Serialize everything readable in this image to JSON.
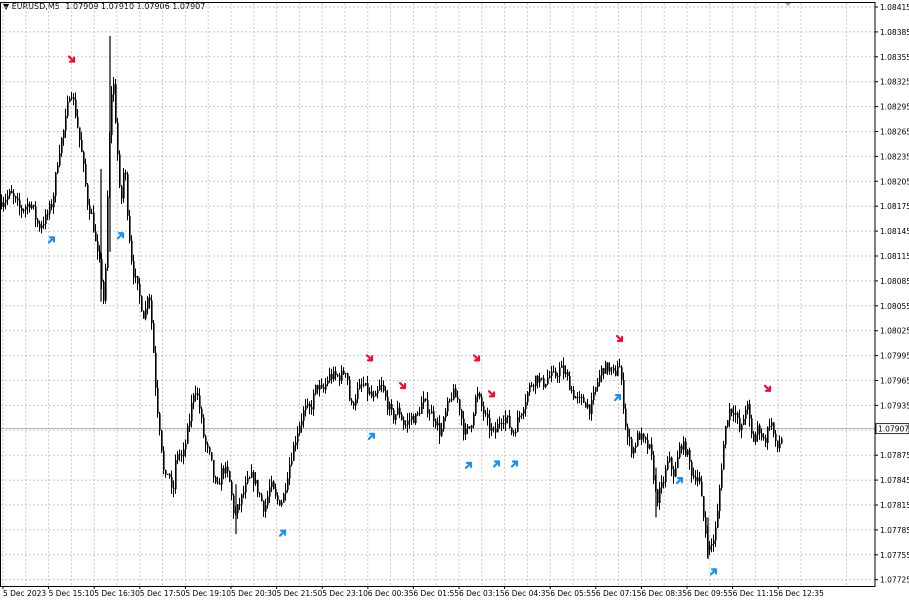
{
  "header": {
    "symbol": "EURUSD,M5",
    "open": "1.07909",
    "high": "1.07910",
    "low": "1.07906",
    "close": "1.07907"
  },
  "colors": {
    "background": "#ffffff",
    "grid": "#c8c8c8",
    "candle": "#000000",
    "sell_arrow": "#e8103a",
    "buy_arrow": "#1e90e8",
    "price_line": "#b0b0b0"
  },
  "chart_data": {
    "type": "candlestick",
    "symbol": "EURUSD,M5",
    "current_price": "1.07907",
    "ylim": [
      1.0771,
      1.0843
    ],
    "grid": true,
    "y_ticks": [
      "1.08415",
      "1.08385",
      "1.08355",
      "1.08325",
      "1.08295",
      "1.08265",
      "1.08235",
      "1.08205",
      "1.08175",
      "1.08145",
      "1.08115",
      "1.08085",
      "1.08055",
      "1.08025",
      "1.07995",
      "1.07965",
      "1.07935",
      "1.07905",
      "1.07875",
      "1.07845",
      "1.07815",
      "1.07785",
      "1.07755",
      "1.07725"
    ],
    "x_ticks": [
      "5 Dec 2023",
      "5 Dec 15:10",
      "5 Dec 16:30",
      "5 Dec 17:50",
      "5 Dec 19:10",
      "5 Dec 20:30",
      "5 Dec 21:50",
      "5 Dec 23:10",
      "6 Dec 00:35",
      "6 Dec 01:55",
      "6 Dec 03:15",
      "6 Dec 04:35",
      "6 Dec 05:55",
      "6 Dec 07:15",
      "6 Dec 08:35",
      "6 Dec 09:55",
      "6 Dec 11:15",
      "6 Dec 12:35"
    ],
    "price_path": [
      [
        0,
        1.0818
      ],
      [
        10,
        1.0819
      ],
      [
        20,
        1.0817
      ],
      [
        30,
        1.0818
      ],
      [
        38,
        1.0815
      ],
      [
        45,
        1.0816
      ],
      [
        52,
        1.0818
      ],
      [
        58,
        1.0824
      ],
      [
        64,
        1.0827
      ],
      [
        70,
        1.0832
      ],
      [
        76,
        1.0828
      ],
      [
        82,
        1.0823
      ],
      [
        87,
        1.0818
      ],
      [
        92,
        1.0816
      ],
      [
        96,
        1.0812
      ],
      [
        100,
        1.081
      ],
      [
        104,
        1.0805
      ],
      [
        108,
        1.0823
      ],
      [
        112,
        1.0834
      ],
      [
        116,
        1.0826
      ],
      [
        120,
        1.0817
      ],
      [
        124,
        1.0823
      ],
      [
        128,
        1.0815
      ],
      [
        132,
        1.081
      ],
      [
        136,
        1.0808
      ],
      [
        140,
        1.0806
      ],
      [
        144,
        1.0804
      ],
      [
        148,
        1.0808
      ],
      [
        152,
        1.0802
      ],
      [
        156,
        1.0794
      ],
      [
        160,
        1.079
      ],
      [
        164,
        1.0784
      ],
      [
        168,
        1.0786
      ],
      [
        172,
        1.0782
      ],
      [
        176,
        1.0788
      ],
      [
        182,
        1.0787
      ],
      [
        188,
        1.0791
      ],
      [
        194,
        1.0796
      ],
      [
        198,
        1.0794
      ],
      [
        204,
        1.0789
      ],
      [
        210,
        1.0787
      ],
      [
        216,
        1.0783
      ],
      [
        222,
        1.0786
      ],
      [
        228,
        1.0785
      ],
      [
        234,
        1.078
      ],
      [
        240,
        1.0782
      ],
      [
        246,
        1.0784
      ],
      [
        252,
        1.0785
      ],
      [
        258,
        1.0783
      ],
      [
        264,
        1.0781
      ],
      [
        270,
        1.0784
      ],
      [
        276,
        1.0782
      ],
      [
        282,
        1.0782
      ],
      [
        288,
        1.0786
      ],
      [
        292,
        1.0788
      ],
      [
        298,
        1.0791
      ],
      [
        304,
        1.0793
      ],
      [
        310,
        1.0793
      ],
      [
        316,
        1.0796
      ],
      [
        322,
        1.0795
      ],
      [
        328,
        1.0797
      ],
      [
        334,
        1.0797
      ],
      [
        340,
        1.0797
      ],
      [
        346,
        1.0798
      ],
      [
        350,
        1.0793
      ],
      [
        356,
        1.0795
      ],
      [
        362,
        1.0796
      ],
      [
        368,
        1.0795
      ],
      [
        374,
        1.0794
      ],
      [
        380,
        1.0796
      ],
      [
        386,
        1.0794
      ],
      [
        392,
        1.0792
      ],
      [
        398,
        1.0793
      ],
      [
        404,
        1.0791
      ],
      [
        410,
        1.0792
      ],
      [
        416,
        1.0792
      ],
      [
        422,
        1.0794
      ],
      [
        428,
        1.0793
      ],
      [
        434,
        1.0792
      ],
      [
        440,
        1.079
      ],
      [
        446,
        1.0793
      ],
      [
        452,
        1.0795
      ],
      [
        458,
        1.0794
      ],
      [
        464,
        1.079
      ],
      [
        470,
        1.0791
      ],
      [
        476,
        1.0795
      ],
      [
        482,
        1.0793
      ],
      [
        488,
        1.0791
      ],
      [
        494,
        1.079
      ],
      [
        500,
        1.0792
      ],
      [
        506,
        1.0792
      ],
      [
        512,
        1.079
      ],
      [
        518,
        1.0792
      ],
      [
        524,
        1.0794
      ],
      [
        530,
        1.0796
      ],
      [
        536,
        1.0797
      ],
      [
        542,
        1.0796
      ],
      [
        548,
        1.0797
      ],
      [
        554,
        1.0797
      ],
      [
        560,
        1.0798
      ],
      [
        566,
        1.0797
      ],
      [
        572,
        1.0795
      ],
      [
        578,
        1.0794
      ],
      [
        584,
        1.0794
      ],
      [
        590,
        1.0793
      ],
      [
        596,
        1.0796
      ],
      [
        602,
        1.0798
      ],
      [
        608,
        1.0798
      ],
      [
        614,
        1.0797
      ],
      [
        618,
        1.0799
      ],
      [
        622,
        1.0795
      ],
      [
        626,
        1.079
      ],
      [
        632,
        1.0788
      ],
      [
        638,
        1.079
      ],
      [
        644,
        1.0789
      ],
      [
        650,
        1.0788
      ],
      [
        656,
        1.0782
      ],
      [
        662,
        1.0784
      ],
      [
        668,
        1.0787
      ],
      [
        674,
        1.0785
      ],
      [
        680,
        1.0789
      ],
      [
        686,
        1.0788
      ],
      [
        692,
        1.0785
      ],
      [
        698,
        1.0785
      ],
      [
        704,
        1.0779
      ],
      [
        708,
        1.0776
      ],
      [
        712,
        1.0777
      ],
      [
        716,
        1.0779
      ],
      [
        720,
        1.0785
      ],
      [
        724,
        1.079
      ],
      [
        728,
        1.0793
      ],
      [
        734,
        1.0793
      ],
      [
        740,
        1.079
      ],
      [
        746,
        1.0794
      ],
      [
        752,
        1.0789
      ],
      [
        758,
        1.0791
      ],
      [
        764,
        1.0789
      ],
      [
        770,
        1.0792
      ],
      [
        776,
        1.0788
      ],
      [
        782,
        1.079
      ]
    ],
    "sell_arrow_x": [
      72,
      370,
      403,
      477,
      492,
      620,
      768
    ],
    "buy_arrow_x": [
      52,
      121,
      283,
      372,
      469,
      497,
      515,
      618,
      680,
      714
    ]
  }
}
